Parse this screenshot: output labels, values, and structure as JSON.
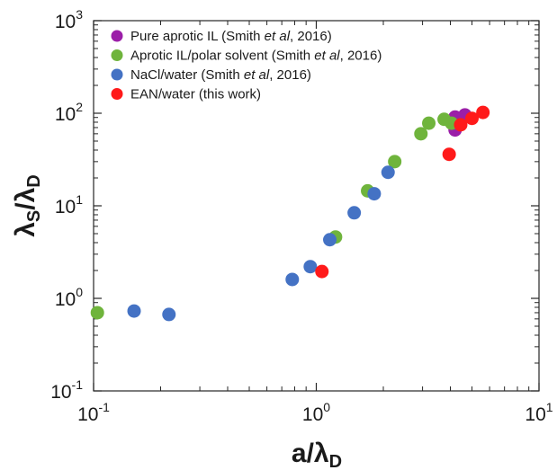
{
  "chart_data": {
    "type": "scatter",
    "title": "",
    "xlabel": {
      "main": "a/λ",
      "sub": "D"
    },
    "ylabel": {
      "main": "λ",
      "sub1": "S",
      "mid": "/λ",
      "sub2": "D"
    },
    "x_scale": "log",
    "y_scale": "log",
    "xlim": [
      0.1,
      10
    ],
    "ylim": [
      0.1,
      1000
    ],
    "x_ticks": [
      {
        "value": 0.1,
        "base": "10",
        "exp": "-1"
      },
      {
        "value": 1,
        "base": "10",
        "exp": "0"
      },
      {
        "value": 10,
        "base": "10",
        "exp": "1"
      }
    ],
    "y_ticks": [
      {
        "value": 0.1,
        "base": "10",
        "exp": "-1"
      },
      {
        "value": 1,
        "base": "10",
        "exp": "0"
      },
      {
        "value": 10,
        "base": "10",
        "exp": "1"
      },
      {
        "value": 100,
        "base": "10",
        "exp": "2"
      },
      {
        "value": 1000,
        "base": "10",
        "exp": "3"
      }
    ],
    "grid": false,
    "legend_position": "top-left",
    "series": [
      {
        "name": [
          "Pure aprotic IL (Smith ",
          "et al",
          ", 2016)"
        ],
        "color": "#9b1ea8",
        "points": [
          [
            4.2,
            66
          ],
          [
            4.2,
            91
          ],
          [
            4.65,
            96
          ]
        ]
      },
      {
        "name": [
          "Aprotic IL/polar solvent (Smith ",
          "et al",
          ", 2016)"
        ],
        "color": "#6fb43c",
        "points": [
          [
            0.104,
            0.7
          ],
          [
            1.22,
            4.6
          ],
          [
            1.7,
            14.5
          ],
          [
            2.25,
            30
          ],
          [
            2.95,
            60
          ],
          [
            3.2,
            78
          ],
          [
            3.75,
            86
          ],
          [
            4.05,
            78
          ]
        ]
      },
      {
        "name": [
          "NaCl/water (Smith ",
          "et al",
          ", 2016)"
        ],
        "color": "#4472c4",
        "points": [
          [
            0.152,
            0.73
          ],
          [
            0.218,
            0.67
          ],
          [
            0.78,
            1.6
          ],
          [
            0.94,
            2.2
          ],
          [
            1.15,
            4.3
          ],
          [
            1.48,
            8.4
          ],
          [
            1.82,
            13.5
          ],
          [
            2.1,
            23
          ]
        ]
      },
      {
        "name": [
          "EAN/water (this work)"
        ],
        "color": "#ff1a1a",
        "points": [
          [
            1.06,
            1.95
          ],
          [
            3.95,
            36
          ],
          [
            4.45,
            75
          ],
          [
            5.0,
            88
          ],
          [
            5.6,
            102
          ]
        ]
      }
    ]
  }
}
